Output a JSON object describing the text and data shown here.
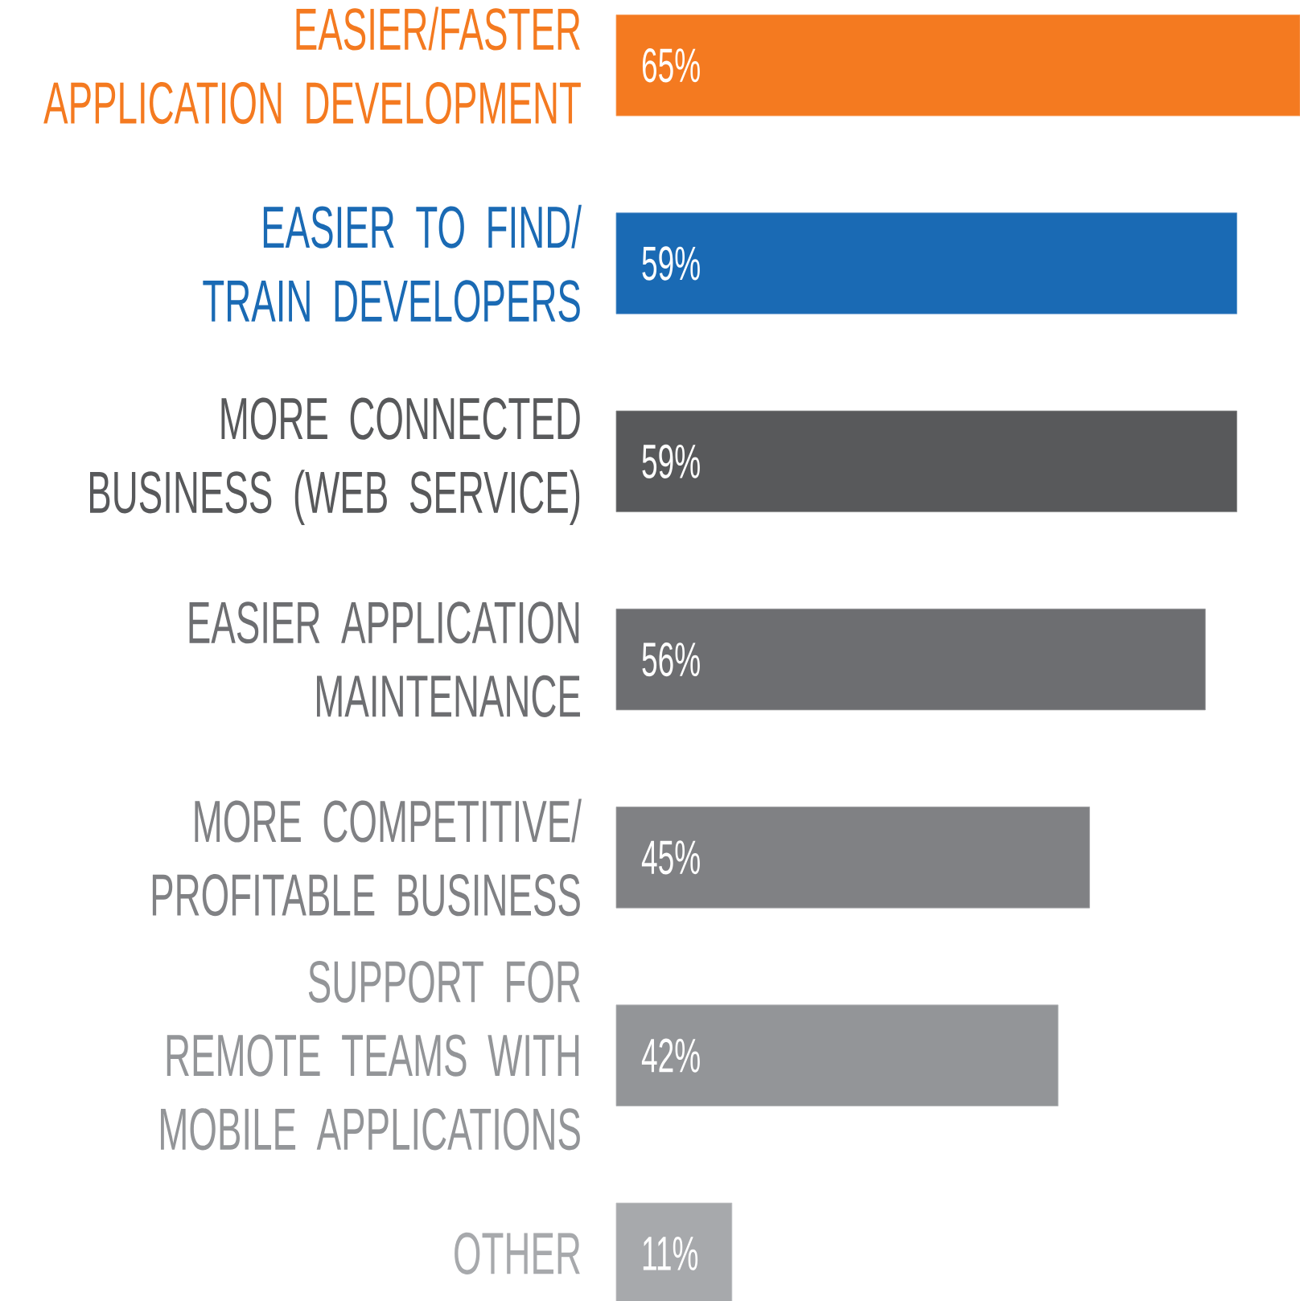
{
  "chart_data": {
    "type": "bar",
    "orientation": "horizontal",
    "categories": [
      "EASIER/FASTER APPLICATION DEVELOPMENT",
      "EASIER TO FIND/ TRAIN DEVELOPERS",
      "MORE CONNECTED BUSINESS (WEB SERVICE)",
      "EASIER APPLICATION MAINTENANCE",
      "MORE COMPETITIVE/ PROFITABLE BUSINESS",
      "SUPPORT FOR REMOTE TEAMS WITH MOBILE APPLICATIONS",
      "OTHER"
    ],
    "values": [
      65,
      59,
      59,
      56,
      45,
      42,
      11
    ],
    "value_labels": [
      "65%",
      "59%",
      "59%",
      "56%",
      "45%",
      "42%",
      "11%"
    ],
    "colors": [
      "#f47a20",
      "#1a6ab4",
      "#58595b",
      "#6d6e71",
      "#808184",
      "#939598",
      "#a7a9ac"
    ],
    "tick_labels": "y"
  }
}
